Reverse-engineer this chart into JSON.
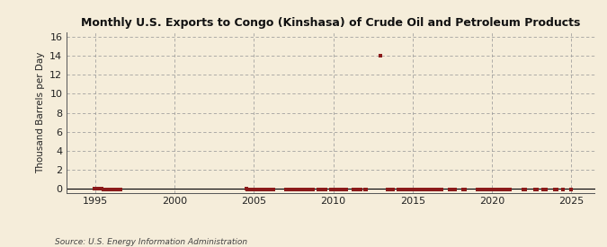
{
  "title": "Monthly U.S. Exports to Congo (Kinshasa) of Crude Oil and Petroleum Products",
  "ylabel": "Thousand Barrels per Day",
  "source": "Source: U.S. Energy Information Administration",
  "background_color": "#f5edda",
  "marker_color": "#8b1a1a",
  "xlim": [
    1993.2,
    2026.5
  ],
  "ylim": [
    -0.4,
    16.5
  ],
  "yticks": [
    0,
    2,
    4,
    6,
    8,
    10,
    12,
    14,
    16
  ],
  "xticks": [
    1995,
    2000,
    2005,
    2010,
    2015,
    2020,
    2025
  ],
  "data_points": [
    [
      1994.917,
      0.0
    ],
    [
      1995.0,
      0.0
    ],
    [
      1995.083,
      0.0
    ],
    [
      1995.167,
      0.0
    ],
    [
      1995.25,
      0.0
    ],
    [
      1995.333,
      0.0
    ],
    [
      1995.417,
      0.0
    ],
    [
      1995.5,
      -0.05
    ],
    [
      1995.583,
      -0.05
    ],
    [
      1995.667,
      -0.05
    ],
    [
      1995.75,
      -0.05
    ],
    [
      1995.833,
      -0.05
    ],
    [
      1995.917,
      -0.05
    ],
    [
      1996.0,
      -0.05
    ],
    [
      1996.083,
      -0.05
    ],
    [
      1996.167,
      -0.05
    ],
    [
      1996.25,
      -0.05
    ],
    [
      1996.333,
      -0.05
    ],
    [
      1996.417,
      -0.05
    ],
    [
      1996.5,
      -0.05
    ],
    [
      1996.583,
      -0.05
    ],
    [
      2004.5,
      0.0
    ],
    [
      2004.583,
      -0.05
    ],
    [
      2004.667,
      -0.05
    ],
    [
      2004.75,
      -0.05
    ],
    [
      2005.0,
      -0.05
    ],
    [
      2005.083,
      -0.05
    ],
    [
      2005.25,
      -0.05
    ],
    [
      2005.333,
      -0.05
    ],
    [
      2005.417,
      -0.05
    ],
    [
      2005.5,
      -0.05
    ],
    [
      2005.583,
      -0.05
    ],
    [
      2005.667,
      -0.05
    ],
    [
      2005.75,
      -0.05
    ],
    [
      2005.833,
      -0.05
    ],
    [
      2005.917,
      -0.05
    ],
    [
      2006.0,
      -0.05
    ],
    [
      2006.083,
      -0.05
    ],
    [
      2006.167,
      -0.05
    ],
    [
      2006.25,
      -0.05
    ],
    [
      2007.0,
      -0.05
    ],
    [
      2007.083,
      -0.05
    ],
    [
      2007.167,
      -0.05
    ],
    [
      2007.25,
      -0.05
    ],
    [
      2007.333,
      -0.05
    ],
    [
      2007.417,
      -0.05
    ],
    [
      2007.5,
      -0.05
    ],
    [
      2007.583,
      -0.05
    ],
    [
      2007.667,
      -0.05
    ],
    [
      2007.75,
      -0.05
    ],
    [
      2007.833,
      -0.05
    ],
    [
      2007.917,
      -0.05
    ],
    [
      2008.0,
      -0.05
    ],
    [
      2008.083,
      -0.05
    ],
    [
      2008.167,
      -0.05
    ],
    [
      2008.25,
      -0.05
    ],
    [
      2008.333,
      -0.05
    ],
    [
      2008.417,
      -0.05
    ],
    [
      2008.5,
      -0.05
    ],
    [
      2008.583,
      -0.05
    ],
    [
      2008.667,
      -0.05
    ],
    [
      2008.75,
      -0.05
    ],
    [
      2009.083,
      -0.05
    ],
    [
      2009.167,
      -0.05
    ],
    [
      2009.25,
      -0.05
    ],
    [
      2009.333,
      -0.05
    ],
    [
      2009.417,
      -0.05
    ],
    [
      2009.5,
      -0.05
    ],
    [
      2009.833,
      -0.05
    ],
    [
      2009.917,
      -0.05
    ],
    [
      2010.0,
      -0.05
    ],
    [
      2010.083,
      -0.05
    ],
    [
      2010.167,
      -0.05
    ],
    [
      2010.25,
      -0.05
    ],
    [
      2010.333,
      -0.05
    ],
    [
      2010.417,
      -0.05
    ],
    [
      2010.5,
      -0.05
    ],
    [
      2010.583,
      -0.05
    ],
    [
      2010.667,
      -0.05
    ],
    [
      2010.75,
      -0.05
    ],
    [
      2010.833,
      -0.05
    ],
    [
      2011.25,
      -0.05
    ],
    [
      2011.333,
      -0.05
    ],
    [
      2011.417,
      -0.05
    ],
    [
      2011.5,
      -0.05
    ],
    [
      2011.583,
      -0.05
    ],
    [
      2011.667,
      -0.05
    ],
    [
      2011.75,
      -0.05
    ],
    [
      2012.0,
      -0.05
    ],
    [
      2012.083,
      -0.05
    ],
    [
      2013.0,
      14.0
    ],
    [
      2013.417,
      -0.05
    ],
    [
      2013.5,
      -0.05
    ],
    [
      2013.583,
      -0.05
    ],
    [
      2013.667,
      -0.05
    ],
    [
      2013.75,
      -0.05
    ],
    [
      2014.083,
      -0.05
    ],
    [
      2014.167,
      -0.05
    ],
    [
      2014.25,
      -0.05
    ],
    [
      2014.333,
      -0.05
    ],
    [
      2014.417,
      -0.05
    ],
    [
      2014.5,
      -0.05
    ],
    [
      2014.583,
      -0.05
    ],
    [
      2014.667,
      -0.05
    ],
    [
      2014.75,
      -0.05
    ],
    [
      2014.833,
      -0.05
    ],
    [
      2014.917,
      -0.05
    ],
    [
      2015.0,
      -0.05
    ],
    [
      2015.083,
      -0.05
    ],
    [
      2015.167,
      -0.05
    ],
    [
      2015.25,
      -0.05
    ],
    [
      2015.333,
      -0.05
    ],
    [
      2015.417,
      -0.05
    ],
    [
      2015.5,
      -0.05
    ],
    [
      2015.583,
      -0.05
    ],
    [
      2015.667,
      -0.05
    ],
    [
      2015.75,
      -0.05
    ],
    [
      2015.833,
      -0.05
    ],
    [
      2015.917,
      -0.05
    ],
    [
      2016.0,
      -0.05
    ],
    [
      2016.083,
      -0.05
    ],
    [
      2016.167,
      -0.05
    ],
    [
      2016.25,
      -0.05
    ],
    [
      2016.333,
      -0.05
    ],
    [
      2016.417,
      -0.05
    ],
    [
      2016.5,
      -0.05
    ],
    [
      2016.583,
      -0.05
    ],
    [
      2016.667,
      -0.05
    ],
    [
      2016.75,
      -0.05
    ],
    [
      2016.833,
      -0.05
    ],
    [
      2017.333,
      -0.05
    ],
    [
      2017.417,
      -0.05
    ],
    [
      2017.5,
      -0.05
    ],
    [
      2017.583,
      -0.05
    ],
    [
      2017.667,
      -0.05
    ],
    [
      2018.167,
      -0.05
    ],
    [
      2018.25,
      -0.05
    ],
    [
      2018.333,
      -0.05
    ],
    [
      2019.083,
      -0.05
    ],
    [
      2019.167,
      -0.05
    ],
    [
      2019.25,
      -0.05
    ],
    [
      2019.333,
      -0.05
    ],
    [
      2019.417,
      -0.05
    ],
    [
      2019.5,
      -0.05
    ],
    [
      2019.583,
      -0.05
    ],
    [
      2019.667,
      -0.05
    ],
    [
      2019.75,
      -0.05
    ],
    [
      2019.833,
      -0.05
    ],
    [
      2019.917,
      -0.05
    ],
    [
      2020.0,
      -0.05
    ],
    [
      2020.083,
      -0.05
    ],
    [
      2020.167,
      -0.05
    ],
    [
      2020.25,
      -0.05
    ],
    [
      2020.333,
      -0.05
    ],
    [
      2020.417,
      -0.05
    ],
    [
      2020.5,
      -0.05
    ],
    [
      2020.583,
      -0.05
    ],
    [
      2020.667,
      -0.05
    ],
    [
      2020.75,
      -0.05
    ],
    [
      2020.833,
      -0.05
    ],
    [
      2020.917,
      -0.05
    ],
    [
      2021.0,
      -0.05
    ],
    [
      2021.083,
      -0.05
    ],
    [
      2021.167,
      -0.05
    ],
    [
      2022.0,
      -0.05
    ],
    [
      2022.083,
      -0.05
    ],
    [
      2022.75,
      -0.05
    ],
    [
      2022.833,
      -0.05
    ],
    [
      2023.25,
      -0.05
    ],
    [
      2023.333,
      -0.05
    ],
    [
      2023.417,
      -0.05
    ],
    [
      2024.0,
      -0.05
    ],
    [
      2024.083,
      -0.05
    ],
    [
      2024.5,
      -0.05
    ],
    [
      2025.0,
      -0.05
    ]
  ]
}
